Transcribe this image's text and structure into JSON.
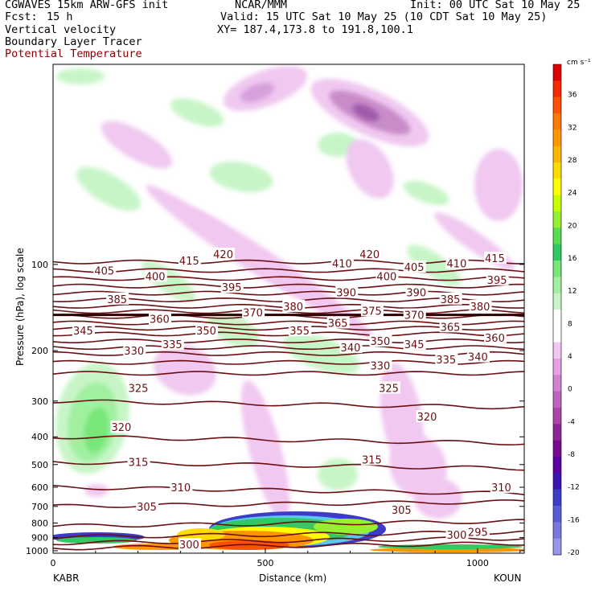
{
  "header": {
    "model": "CGWAVES 15km ARW-GFS init",
    "org": "NCAR/MMM",
    "init": "Init: 00 UTC Sat 10 May 25",
    "fcst_label": "Fcst:",
    "fcst_value": "15 h",
    "valid": "Valid: 15 UTC Sat 10 May 25 (10 CDT Sat 10 May 25)",
    "field1": "Vertical velocity",
    "field2": "Boundary Layer Tracer",
    "field3": "Potential Temperature",
    "xy": "XY= 187.4,173.8 to 191.8,100.1"
  },
  "colors": {
    "theta": "#6b0f12",
    "frame": "#000000"
  },
  "chart_data": {
    "type": "contour",
    "ylabel": "Pressure (hPa), log scale",
    "xlabel": "Distance (km)",
    "x_endpoints": [
      "KABR",
      "KOUN"
    ],
    "xlim": [
      0,
      1110
    ],
    "ylim_hpa": [
      1020,
      20
    ],
    "x_ticks": [
      0,
      500,
      1000
    ],
    "y_ticks": [
      100,
      200,
      300,
      400,
      500,
      600,
      700,
      800,
      900,
      1000
    ],
    "colorbar": {
      "units": "cm s⁻¹",
      "tick_labels": [
        "36",
        "32",
        "28",
        "24",
        "20",
        "16",
        "12",
        "8",
        "4",
        "0",
        "-4",
        "-8",
        "-12",
        "-16",
        "-20"
      ],
      "colors": [
        "#dc0000",
        "#f52800",
        "#ff5000",
        "#ff7800",
        "#ff9600",
        "#ffb400",
        "#ffdc00",
        "#ffff00",
        "#c8ff00",
        "#96f032",
        "#5adc50",
        "#32c864",
        "#78e678",
        "#a0f0a0",
        "#c8f5c8",
        "#ffffff",
        "#ffffff",
        "#f0c8f0",
        "#e6a0e6",
        "#d282d2",
        "#be64be",
        "#aa46aa",
        "#8c2896",
        "#780a8c",
        "#5a00a0",
        "#3c14b4",
        "#3c3cc8",
        "#5a5ad2",
        "#7878dc",
        "#9696e6"
      ]
    },
    "theta_contours": [
      {
        "label": "295",
        "p": 860,
        "x": 1000
      },
      {
        "label": "300",
        "p": 950,
        "x": 320
      },
      {
        "label": "300",
        "p": 880,
        "x": 950
      },
      {
        "label": "305",
        "p": 700,
        "x": 220
      },
      {
        "label": "305",
        "p": 720,
        "x": 820
      },
      {
        "label": "310",
        "p": 600,
        "x": 300
      },
      {
        "label": "310",
        "p": 600,
        "x": 1055
      },
      {
        "label": "315",
        "p": 490,
        "x": 200
      },
      {
        "label": "315",
        "p": 480,
        "x": 750
      },
      {
        "label": "320",
        "p": 370,
        "x": 160
      },
      {
        "label": "320",
        "p": 340,
        "x": 880
      },
      {
        "label": "325",
        "p": 270,
        "x": 200
      },
      {
        "label": "325",
        "p": 270,
        "x": 790
      },
      {
        "label": "330",
        "p": 200,
        "x": 190
      },
      {
        "label": "330",
        "p": 225,
        "x": 770
      },
      {
        "label": "335",
        "p": 190,
        "x": 280
      },
      {
        "label": "335",
        "p": 215,
        "x": 925
      },
      {
        "label": "340",
        "p": 195,
        "x": 700
      },
      {
        "label": "340",
        "p": 210,
        "x": 1000
      },
      {
        "label": "345",
        "p": 170,
        "x": 70
      },
      {
        "label": "345",
        "p": 190,
        "x": 850
      },
      {
        "label": "350",
        "p": 170,
        "x": 360
      },
      {
        "label": "350",
        "p": 185,
        "x": 770
      },
      {
        "label": "355",
        "p": 170,
        "x": 580
      },
      {
        "label": "360",
        "p": 155,
        "x": 250
      },
      {
        "label": "360",
        "p": 180,
        "x": 1040
      },
      {
        "label": "365",
        "p": 160,
        "x": 670
      },
      {
        "label": "365",
        "p": 165,
        "x": 935
      },
      {
        "label": "370",
        "p": 147,
        "x": 470
      },
      {
        "label": "375",
        "p": 145,
        "x": 750
      },
      {
        "label": "380",
        "p": 140,
        "x": 565
      },
      {
        "label": "380",
        "p": 140,
        "x": 1005
      },
      {
        "label": "385",
        "p": 132,
        "x": 150
      },
      {
        "label": "385",
        "p": 132,
        "x": 935
      },
      {
        "label": "390",
        "p": 125,
        "x": 690
      },
      {
        "label": "390",
        "p": 125,
        "x": 855
      },
      {
        "label": "395",
        "p": 120,
        "x": 420
      },
      {
        "label": "395",
        "p": 113,
        "x": 1045
      },
      {
        "label": "400",
        "p": 110,
        "x": 240
      },
      {
        "label": "400",
        "p": 110,
        "x": 785
      },
      {
        "label": "405",
        "p": 105,
        "x": 120
      },
      {
        "label": "405",
        "p": 102,
        "x": 850
      },
      {
        "label": "410",
        "p": 99,
        "x": 680
      },
      {
        "label": "410",
        "p": 99,
        "x": 950
      },
      {
        "label": "415",
        "p": 97,
        "x": 320
      },
      {
        "label": "415",
        "p": 95,
        "x": 1040
      },
      {
        "label": "420",
        "p": 92,
        "x": 400
      },
      {
        "label": "420",
        "p": 92,
        "x": 745
      }
    ],
    "theta_levels_count": 26,
    "theta_base_pressures": [
      980,
      940,
      895,
      820,
      700,
      600,
      490,
      400,
      300,
      240,
      220,
      205,
      195,
      185,
      175,
      167,
      160,
      152,
      146,
      140,
      133,
      126,
      119,
      112,
      105,
      98
    ],
    "extra_labels": [
      {
        "label": "370",
        "p": 150,
        "x": 850
      }
    ]
  }
}
